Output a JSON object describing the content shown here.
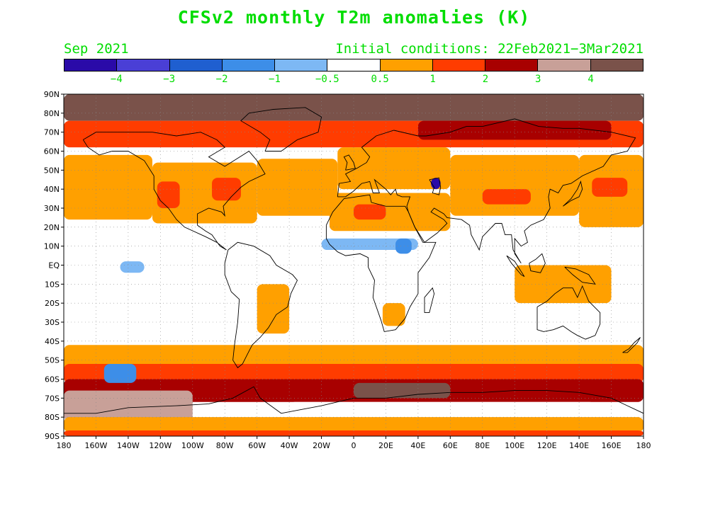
{
  "title": "CFSv2 monthly T2m anomalies (K)",
  "month": "Sep 2021",
  "initial_conditions": "Initial conditions: 22Feb2021−3Mar2021",
  "colorbar": {
    "colors": [
      "#2a0aa8",
      "#4a3fd6",
      "#1f5fd0",
      "#3d8ee8",
      "#7db8f4",
      "#ffffff",
      "#ffa000",
      "#ff3c00",
      "#a80000",
      "#c8a098",
      "#7a524a"
    ],
    "labels": [
      "−4",
      "−3",
      "−2",
      "−1",
      "−0.5",
      "0.5",
      "1",
      "2",
      "3",
      "4"
    ]
  },
  "axes": {
    "lat_labels": [
      "90N",
      "80N",
      "70N",
      "60N",
      "50N",
      "40N",
      "30N",
      "20N",
      "10N",
      "EQ",
      "10S",
      "20S",
      "30S",
      "40S",
      "50S",
      "60S",
      "70S",
      "80S",
      "90S"
    ],
    "lon_labels": [
      "180",
      "160W",
      "140W",
      "120W",
      "100W",
      "80W",
      "60W",
      "40W",
      "20W",
      "0",
      "20E",
      "40E",
      "60E",
      "80E",
      "100E",
      "120E",
      "140E",
      "160E",
      "180"
    ]
  },
  "anomaly_regions": [
    {
      "name": "arctic",
      "color": "#7a524a",
      "lon": [
        -180,
        180
      ],
      "lat": [
        76,
        90
      ]
    },
    {
      "name": "north-band",
      "color": "#ff3c00",
      "lon": [
        -180,
        180
      ],
      "lat": [
        62,
        76
      ]
    },
    {
      "name": "siberia",
      "color": "#a80000",
      "lon": [
        40,
        160
      ],
      "lat": [
        66,
        76
      ]
    },
    {
      "name": "north-pacific",
      "color": "#ffa000",
      "lon": [
        -180,
        -125
      ],
      "lat": [
        24,
        58
      ]
    },
    {
      "name": "north-america",
      "color": "#ffa000",
      "lon": [
        -125,
        -60
      ],
      "lat": [
        22,
        54
      ]
    },
    {
      "name": "us-west",
      "color": "#ff3c00",
      "lon": [
        -122,
        -108
      ],
      "lat": [
        30,
        44
      ]
    },
    {
      "name": "us-east",
      "color": "#ff3c00",
      "lon": [
        -88,
        -70
      ],
      "lat": [
        34,
        46
      ]
    },
    {
      "name": "north-atlantic",
      "color": "#ffa000",
      "lon": [
        -60,
        -10
      ],
      "lat": [
        26,
        56
      ]
    },
    {
      "name": "europe",
      "color": "#ffa000",
      "lon": [
        -10,
        60
      ],
      "lat": [
        40,
        62
      ]
    },
    {
      "name": "north-africa",
      "color": "#ffa000",
      "lon": [
        -15,
        60
      ],
      "lat": [
        18,
        38
      ]
    },
    {
      "name": "sahara",
      "color": "#ff3c00",
      "lon": [
        0,
        20
      ],
      "lat": [
        24,
        32
      ]
    },
    {
      "name": "asia",
      "color": "#ffa000",
      "lon": [
        60,
        140
      ],
      "lat": [
        26,
        58
      ]
    },
    {
      "name": "central-asia",
      "color": "#ff3c00",
      "lon": [
        80,
        110
      ],
      "lat": [
        32,
        40
      ]
    },
    {
      "name": "west-pacific",
      "color": "#ffa000",
      "lon": [
        140,
        180
      ],
      "lat": [
        20,
        58
      ]
    },
    {
      "name": "japan-hot",
      "color": "#ff3c00",
      "lon": [
        148,
        170
      ],
      "lat": [
        36,
        46
      ]
    },
    {
      "name": "sahel",
      "color": "#7db8f4",
      "lon": [
        -20,
        40
      ],
      "lat": [
        8,
        14
      ]
    },
    {
      "name": "east-africa",
      "color": "#3d8ee8",
      "lon": [
        26,
        36
      ],
      "lat": [
        6,
        14
      ]
    },
    {
      "name": "indonesia",
      "color": "#ffa000",
      "lon": [
        100,
        160
      ],
      "lat": [
        -20,
        0
      ]
    },
    {
      "name": "south-america",
      "color": "#ffa000",
      "lon": [
        -60,
        -40
      ],
      "lat": [
        -36,
        -10
      ]
    },
    {
      "name": "south-africa",
      "color": "#ffa000",
      "lon": [
        18,
        32
      ],
      "lat": [
        -32,
        -20
      ]
    },
    {
      "name": "south-ocean",
      "color": "#ffa000",
      "lon": [
        -180,
        180
      ],
      "lat": [
        -58,
        -42
      ]
    },
    {
      "name": "south-ocean-inner",
      "color": "#ff3c00",
      "lon": [
        -180,
        180
      ],
      "lat": [
        -62,
        -52
      ]
    },
    {
      "name": "south-ring",
      "color": "#a80000",
      "lon": [
        -180,
        180
      ],
      "lat": [
        -72,
        -60
      ]
    },
    {
      "name": "antarctic-coast",
      "color": "#c8a098",
      "lon": [
        -180,
        -100
      ],
      "lat": [
        -82,
        -66
      ]
    },
    {
      "name": "antarctic-east",
      "color": "#7a524a",
      "lon": [
        0,
        60
      ],
      "lat": [
        -70,
        -62
      ]
    },
    {
      "name": "antarctica-interior",
      "color": "#ffffff",
      "lon": [
        -40,
        150
      ],
      "lat": [
        -84,
        -72
      ]
    },
    {
      "name": "south-pole-band",
      "color": "#ffa000",
      "lon": [
        -180,
        180
      ],
      "lat": [
        -88,
        -80
      ]
    },
    {
      "name": "south-pole-edge",
      "color": "#ff3c00",
      "lon": [
        -180,
        180
      ],
      "lat": [
        -90,
        -87
      ]
    },
    {
      "name": "sw-pacific-cold",
      "color": "#3d8ee8",
      "lon": [
        -155,
        -135
      ],
      "lat": [
        -62,
        -52
      ]
    },
    {
      "name": "central-pacific-cold",
      "color": "#7db8f4",
      "lon": [
        -145,
        -130
      ],
      "lat": [
        -4,
        2
      ]
    },
    {
      "name": "caspian-cold",
      "color": "#2a0aa8",
      "lon": [
        48,
        54
      ],
      "lat": [
        40,
        46
      ]
    }
  ]
}
